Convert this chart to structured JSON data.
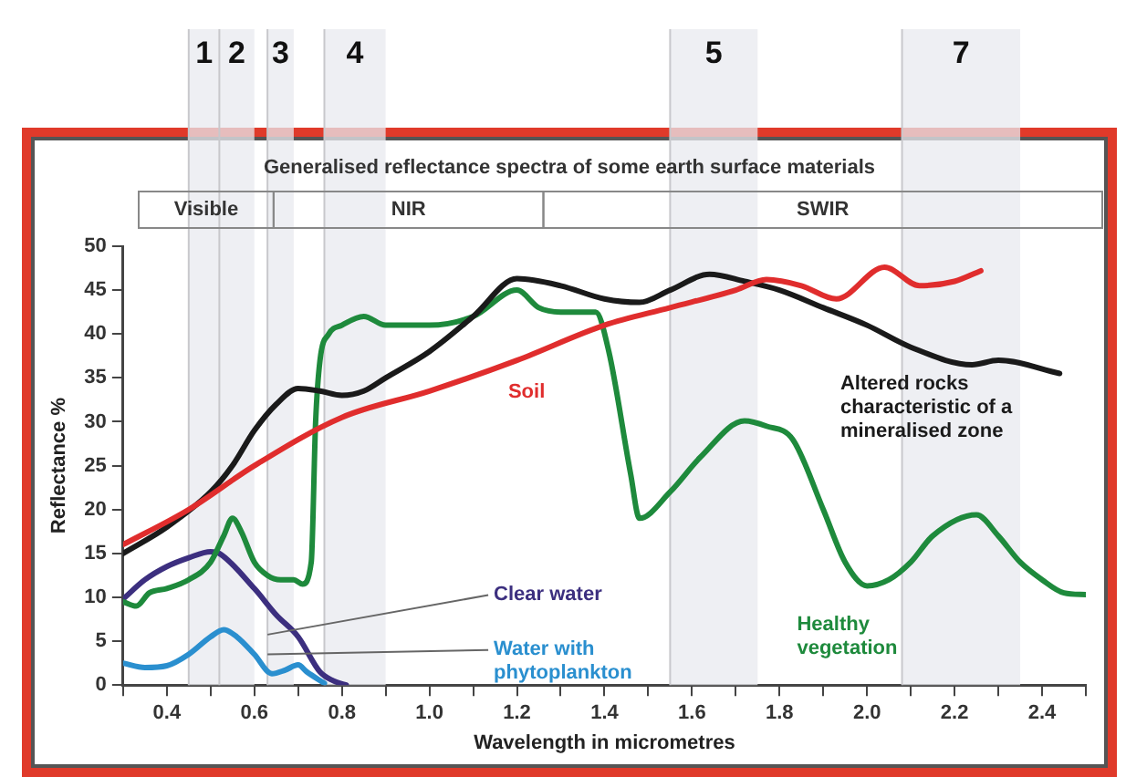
{
  "chart_data": {
    "type": "line",
    "title": "Generalised reflectance spectra of some earth surface materials",
    "xlabel": "Wavelength in micrometres",
    "ylabel": "Reflectance %",
    "xlim": [
      0.3,
      2.5
    ],
    "xticks": [
      {
        "value": 0.3,
        "label": null
      },
      0.4,
      {
        "value": 0.5,
        "label": null
      },
      0.6,
      {
        "value": 0.7,
        "label": null
      },
      0.8,
      {
        "value": 0.9,
        "label": null
      },
      {
        "value": 1,
        "label": "1.0"
      },
      {
        "value": 1.1,
        "label": null
      },
      1.2,
      {
        "value": 1.3,
        "label": null
      },
      1.4,
      {
        "value": 1.5,
        "label": null
      },
      1.6,
      {
        "value": 1.7,
        "label": null
      },
      1.8,
      {
        "value": 1.9,
        "label": null
      },
      {
        "value": 2,
        "label": "2.0"
      },
      {
        "value": 2.1,
        "label": null
      },
      2.2,
      {
        "value": 2.3,
        "label": null
      },
      2.4,
      {
        "value": 2.5,
        "label": null
      }
    ],
    "ylim": [
      0,
      50
    ],
    "yticks": [
      0,
      5,
      10,
      15,
      20,
      25,
      30,
      35,
      40,
      45,
      50
    ],
    "grid": false,
    "legend": false,
    "marker": "none",
    "line_style": "solid",
    "annotations": [
      "Visible",
      "NIR",
      "SWIR"
    ],
    "bands": [
      {
        "axis": "x",
        "from": 0.45,
        "to": 0.52,
        "label": "1",
        "color": "#e8eaef"
      },
      {
        "axis": "x",
        "from": 0.52,
        "to": 0.6,
        "label": "2",
        "color": "#e8eaef"
      },
      {
        "axis": "x",
        "from": 0.63,
        "to": 0.69,
        "label": "3",
        "color": "#e8eaef"
      },
      {
        "axis": "x",
        "from": 0.76,
        "to": 0.9,
        "label": "4",
        "color": "#e8eaef"
      },
      {
        "axis": "x",
        "from": 1.55,
        "to": 1.75,
        "label": "5",
        "color": "#e8eaef"
      },
      {
        "axis": "x",
        "from": 2.08,
        "to": 2.35,
        "label": "7",
        "color": "#e8eaef"
      }
    ],
    "series": [
      {
        "name": "Soil",
        "color": "#e02d2d",
        "x": [
          0.3,
          0.45,
          0.6,
          0.8,
          1.0,
          1.2,
          1.4,
          1.55,
          1.7,
          1.77,
          1.85,
          1.93,
          2.04,
          2.12,
          2.2,
          2.26
        ],
        "values": [
          16,
          20,
          25,
          30.5,
          33.5,
          37,
          41,
          43,
          45,
          46.2,
          45.5,
          44,
          47.6,
          45.5,
          46,
          47.2
        ]
      },
      {
        "name": "Altered rocks characteristic of a mineralised zone",
        "color": "#1a1a1a",
        "x": [
          0.3,
          0.4,
          0.5,
          0.55,
          0.6,
          0.65,
          0.7,
          0.75,
          0.8,
          0.85,
          0.9,
          1.0,
          1.1,
          1.2,
          1.3,
          1.4,
          1.48,
          1.55,
          1.64,
          1.72,
          1.8,
          1.9,
          2.0,
          2.1,
          2.24,
          2.3,
          2.44
        ],
        "values": [
          15,
          18,
          22,
          25,
          29,
          32,
          33.8,
          33.5,
          33,
          33.5,
          35,
          38,
          42,
          46.3,
          45.5,
          44,
          43.6,
          45,
          46.8,
          46,
          45,
          43,
          41,
          38.5,
          36.5,
          37,
          35.5
        ]
      },
      {
        "name": "Healthy vegetation",
        "color": "#1e8a3c",
        "x": [
          0.3,
          0.33,
          0.36,
          0.4,
          0.45,
          0.5,
          0.53,
          0.55,
          0.57,
          0.6,
          0.63,
          0.66,
          0.69,
          0.71,
          0.73,
          0.74,
          0.75,
          0.77,
          0.8,
          0.85,
          0.9,
          1.0,
          1.1,
          1.2,
          1.25,
          1.3,
          1.38,
          1.41,
          1.46,
          1.48,
          1.55,
          1.62,
          1.72,
          1.77,
          1.83,
          1.9,
          1.95,
          2.0,
          2.05,
          2.1,
          2.15,
          2.25,
          2.3,
          2.35,
          2.4,
          2.45,
          2.5
        ],
        "values": [
          9.5,
          9,
          10.5,
          11,
          12,
          14,
          17,
          19,
          17.5,
          14,
          12.5,
          12,
          12,
          11.5,
          14,
          30,
          37,
          40,
          41,
          42,
          41,
          41,
          42,
          45,
          43,
          42.5,
          42.5,
          38,
          24,
          19,
          22,
          26,
          30.1,
          29.5,
          28,
          20,
          14,
          11.3,
          12,
          14,
          17,
          19.4,
          17,
          14,
          12,
          10.5,
          10.3
        ]
      },
      {
        "name": "Clear water",
        "color": "#3c2f7f",
        "x": [
          0.3,
          0.35,
          0.4,
          0.45,
          0.5,
          0.52,
          0.6,
          0.65,
          0.7,
          0.75,
          0.78,
          0.81
        ],
        "values": [
          9.8,
          12,
          13.5,
          14.5,
          15.2,
          15,
          11,
          8,
          5.5,
          1.5,
          0.5,
          0
        ]
      },
      {
        "name": "Water with phytoplankton",
        "color": "#2a8fcf",
        "x": [
          0.3,
          0.35,
          0.4,
          0.45,
          0.5,
          0.53,
          0.56,
          0.6,
          0.64,
          0.67,
          0.7,
          0.72,
          0.76
        ],
        "values": [
          2.5,
          2,
          2.2,
          3.5,
          5.5,
          6.3,
          5.5,
          3.5,
          1.3,
          1.7,
          2.3,
          1.5,
          0.2
        ]
      }
    ]
  }
}
